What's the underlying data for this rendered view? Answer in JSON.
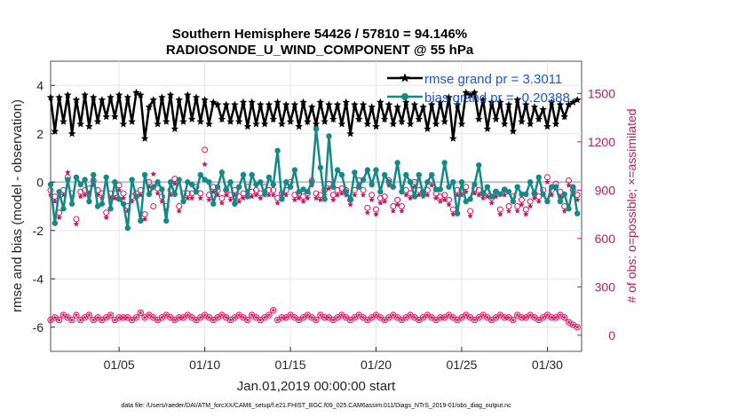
{
  "chart_data": {
    "type": "line",
    "title_line1": "Southern Hemisphere 54426 / 57810 = 94.146%",
    "title_line2": "RADIOSONDE_U_WIND_COMPONENT @ 55 hPa",
    "xlabel": "Jan.01,2019 00:00:00 start",
    "ylabel": "rmse and bias (model - observation)",
    "y2label": "# of obs: o=possible; ×=assimilated",
    "footnote": "data file: /Users/raeder/DAI/ATM_forcXX/CAM6_setup/f.e21.FHIST_BGC.f09_025.CAM6assim.011/Diags_NTrS_2019-01/obs_diag_output.nc",
    "xlim": [
      1.0,
      32.0
    ],
    "ylim": [
      -7,
      5
    ],
    "y2lim": [
      -100,
      1700
    ],
    "x_ticks": [
      5,
      10,
      15,
      20,
      25,
      30
    ],
    "x_tick_labels": [
      "01/05",
      "01/10",
      "01/15",
      "01/20",
      "01/25",
      "01/30"
    ],
    "y_ticks": [
      -6,
      -4,
      -2,
      0,
      2,
      4
    ],
    "y_tick_labels": [
      "-6",
      "-4",
      "-2",
      "0",
      "2",
      "4"
    ],
    "y2_ticks": [
      0,
      300,
      600,
      900,
      1200,
      1500
    ],
    "y2_tick_labels": [
      "0",
      "300",
      "600",
      "900",
      "1200",
      "1500"
    ],
    "x": [
      1.0,
      1.25,
      1.5,
      1.75,
      2.0,
      2.25,
      2.5,
      2.75,
      3.0,
      3.25,
      3.5,
      3.75,
      4.0,
      4.25,
      4.5,
      4.75,
      5.0,
      5.25,
      5.5,
      5.75,
      6.0,
      6.25,
      6.5,
      6.75,
      7.0,
      7.25,
      7.5,
      7.75,
      8.0,
      8.25,
      8.5,
      8.75,
      9.0,
      9.25,
      9.5,
      9.75,
      10.0,
      10.25,
      10.5,
      10.75,
      11.0,
      11.25,
      11.5,
      11.75,
      12.0,
      12.25,
      12.5,
      12.75,
      13.0,
      13.25,
      13.5,
      13.75,
      14.0,
      14.25,
      14.5,
      14.75,
      15.0,
      15.25,
      15.5,
      15.75,
      16.0,
      16.25,
      16.5,
      16.75,
      17.0,
      17.25,
      17.5,
      17.75,
      18.0,
      18.25,
      18.5,
      18.75,
      19.0,
      19.25,
      19.5,
      19.75,
      20.0,
      20.25,
      20.5,
      20.75,
      21.0,
      21.25,
      21.5,
      21.75,
      22.0,
      22.25,
      22.5,
      22.75,
      23.0,
      23.25,
      23.5,
      23.75,
      24.0,
      24.25,
      24.5,
      24.75,
      25.0,
      25.25,
      25.5,
      25.75,
      26.0,
      26.25,
      26.5,
      26.75,
      27.0,
      27.25,
      27.5,
      27.75,
      28.0,
      28.25,
      28.5,
      28.75,
      29.0,
      29.25,
      29.5,
      29.75,
      30.0,
      30.25,
      30.5,
      30.75,
      31.0,
      31.25,
      31.5,
      31.75
    ],
    "series": [
      {
        "name": "rmse",
        "axis": "left",
        "color": "#000000",
        "marker": "star-filled",
        "legend": "rmse grand pr = 3.3011",
        "values": [
          3.5,
          2.1,
          3.5,
          2.5,
          3.6,
          2.0,
          3.4,
          2.4,
          3.6,
          2.3,
          3.5,
          2.5,
          3.4,
          2.7,
          3.5,
          2.7,
          3.6,
          2.4,
          3.5,
          2.5,
          3.7,
          3.6,
          1.8,
          3.1,
          3.4,
          2.4,
          3.5,
          2.5,
          3.6,
          2.2,
          3.4,
          2.5,
          3.6,
          2.6,
          3.5,
          2.5,
          3.4,
          2.4,
          3.3,
          3.2,
          2.6,
          3.2,
          2.5,
          3.2,
          2.5,
          3.3,
          2.3,
          3.3,
          2.4,
          3.2,
          2.4,
          3.2,
          2.6,
          3.3,
          2.4,
          3.2,
          2.5,
          3.2,
          2.3,
          3.3,
          2.5,
          3.1,
          2.4,
          3.3,
          2.5,
          3.2,
          2.6,
          3.2,
          2.4,
          3.3,
          2.0,
          3.2,
          2.6,
          3.2,
          2.4,
          3.1,
          2.3,
          3.3,
          2.6,
          3.2,
          2.4,
          3.1,
          2.5,
          3.3,
          2.4,
          3.2,
          2.6,
          3.1,
          2.2,
          3.2,
          2.4,
          3.3,
          2.5,
          3.5,
          1.8,
          3.2,
          2.4,
          3.7,
          3.6,
          3.7,
          2.6,
          3.4,
          2.2,
          3.3,
          2.6,
          3.3,
          2.4,
          3.2,
          2.1,
          3.4,
          2.5,
          3.2,
          2.4,
          3.1,
          2.6,
          3.0,
          2.3,
          3.3,
          2.4,
          3.2,
          2.7,
          3.2,
          3.3,
          3.4
        ]
      },
      {
        "name": "bias",
        "axis": "left",
        "color": "#138a8a",
        "marker": "dot",
        "legend": "bias grand pr = -0.20388",
        "values": [
          -0.1,
          -1.7,
          -0.4,
          -1.1,
          0.1,
          -0.9,
          0.2,
          -0.1,
          0.1,
          -0.8,
          0.3,
          -1.0,
          -0.9,
          0.2,
          -1.1,
          0.0,
          -0.7,
          -0.9,
          -1.9,
          0.1,
          -0.6,
          -1.6,
          0.3,
          -0.5,
          -0.2,
          0.0,
          -0.3,
          -1.6,
          0.0,
          -0.5,
          0.1,
          -0.8,
          0.0,
          -0.1,
          -0.4,
          0.3,
          0.1,
          0.0,
          -0.9,
          -0.2,
          0.4,
          -0.3,
          0.0,
          -0.9,
          -0.2,
          0.3,
          -0.6,
          0.3,
          -0.1,
          0.0,
          -0.5,
          0.2,
          -0.1,
          1.3,
          -0.7,
          0.0,
          -0.2,
          0.5,
          -0.4,
          -0.3,
          -0.4,
          0.0,
          2.2,
          0.6,
          -0.7,
          1.9,
          -0.2,
          0.5,
          0.3,
          -0.4,
          -0.7,
          0.4,
          -0.2,
          0.1,
          0.5,
          -0.1,
          0.5,
          -0.4,
          0.3,
          0.0,
          -0.2,
          0.8,
          -0.4,
          0.3,
          0.0,
          -0.6,
          0.3,
          -0.5,
          0.0,
          0.3,
          -0.3,
          -0.3,
          0.8,
          -0.2,
          0.0,
          -1.3,
          0.0,
          -0.8,
          -0.7,
          -0.1,
          0.7,
          -0.5,
          -0.2,
          -0.6,
          -0.4,
          -0.5,
          -0.3,
          -0.4,
          -0.8,
          -0.2,
          -0.5,
          -0.5,
          0.0,
          -0.5,
          0.2,
          -0.5,
          -0.8,
          -0.2,
          -0.2,
          -0.8,
          -0.5,
          -1.1,
          -0.2,
          -1.3
        ]
      },
      {
        "name": "possible",
        "axis": "right",
        "color": "#e0115f",
        "marker": "circle-open",
        "values": [
          900,
          860,
          760,
          900,
          980,
          880,
          720,
          890,
          900,
          910,
          960,
          900,
          880,
          760,
          880,
          880,
          930,
          880,
          800,
          860,
          880,
          900,
          750,
          950,
          800,
          910,
          860,
          800,
          900,
          970,
          800,
          880,
          880,
          880,
          920,
          880,
          1150,
          870,
          920,
          900,
          850,
          900,
          870,
          900,
          860,
          880,
          920,
          890,
          900,
          880,
          920,
          900,
          900,
          850,
          880,
          900,
          950,
          870,
          880,
          860,
          880,
          960,
          880,
          870,
          900,
          940,
          870,
          900,
          910,
          900,
          840,
          900,
          960,
          900,
          790,
          870,
          780,
          850,
          860,
          960,
          800,
          840,
          800,
          900,
          880,
          950,
          900,
          890,
          900,
          960,
          880,
          860,
          870,
          840,
          780,
          900,
          900,
          920,
          770,
          910,
          900,
          880,
          890,
          850,
          890,
          780,
          900,
          800,
          860,
          800,
          840,
          780,
          830,
          880,
          860,
          900,
          980,
          900,
          940,
          890,
          800,
          960,
          900,
          870
        ]
      },
      {
        "name": "assimilated",
        "axis": "right",
        "color": "#c2185b",
        "marker": "star",
        "values": [
          870,
          830,
          730,
          870,
          1010,
          850,
          690,
          860,
          870,
          880,
          930,
          870,
          850,
          730,
          850,
          850,
          900,
          850,
          770,
          830,
          850,
          870,
          720,
          920,
          1000,
          880,
          830,
          770,
          870,
          940,
          770,
          850,
          850,
          850,
          890,
          850,
          1060,
          840,
          890,
          870,
          820,
          870,
          840,
          870,
          830,
          850,
          890,
          860,
          870,
          850,
          890,
          870,
          870,
          820,
          850,
          870,
          920,
          840,
          850,
          830,
          850,
          930,
          850,
          840,
          870,
          910,
          840,
          870,
          880,
          870,
          810,
          870,
          930,
          870,
          760,
          840,
          750,
          820,
          830,
          930,
          770,
          810,
          770,
          870,
          850,
          920,
          870,
          860,
          870,
          930,
          850,
          830,
          840,
          810,
          750,
          870,
          870,
          890,
          740,
          880,
          870,
          850,
          860,
          820,
          860,
          750,
          870,
          770,
          830,
          770,
          810,
          750,
          800,
          850,
          830,
          870,
          950,
          870,
          910,
          860,
          770,
          930,
          870,
          840
        ]
      },
      {
        "name": "possible_lower",
        "axis": "left",
        "color": "#e0115f",
        "marker": "circle-open",
        "values": [
          -5.7,
          -5.6,
          -5.7,
          -5.5,
          -5.6,
          -5.7,
          -5.5,
          -5.7,
          -5.6,
          -5.5,
          -5.7,
          -5.6,
          -5.7,
          -5.6,
          -5.5,
          -5.7,
          -5.6,
          -5.6,
          -5.6,
          -5.7,
          -5.6,
          -5.4,
          -5.6,
          -5.5,
          -5.6,
          -5.7,
          -5.6,
          -5.5,
          -5.6,
          -5.7,
          -5.6,
          -5.6,
          -5.5,
          -5.6,
          -5.7,
          -5.6,
          -5.5,
          -5.6,
          -5.7,
          -5.6,
          -5.5,
          -5.6,
          -5.7,
          -5.6,
          -5.5,
          -5.6,
          -5.7,
          -5.5,
          -5.6,
          -5.7,
          -5.6,
          -5.5,
          -5.3,
          -5.7,
          -5.6,
          -5.6,
          -5.5,
          -5.6,
          -5.7,
          -5.6,
          -5.5,
          -5.6,
          -5.7,
          -5.5,
          -5.6,
          -5.6,
          -5.7,
          -5.6,
          -5.5,
          -5.6,
          -5.7,
          -5.6,
          -5.5,
          -5.6,
          -5.7,
          -5.6,
          -5.5,
          -5.6,
          -5.7,
          -5.6,
          -5.5,
          -5.6,
          -5.7,
          -5.6,
          -5.5,
          -5.6,
          -5.7,
          -5.6,
          -5.5,
          -5.6,
          -5.7,
          -5.6,
          -5.6,
          -5.5,
          -5.6,
          -5.7,
          -5.6,
          -5.5,
          -5.6,
          -5.7,
          -5.6,
          -5.5,
          -5.6,
          -5.7,
          -5.6,
          -5.5,
          -5.6,
          -5.6,
          -5.7,
          -5.5,
          -5.6,
          -5.6,
          -5.5,
          -5.6,
          -5.7,
          -5.6,
          -5.5,
          -5.6,
          -5.6,
          -5.5,
          -5.6,
          -5.8,
          -5.9,
          -6.0
        ]
      }
    ],
    "legend_placement": "top-right"
  }
}
